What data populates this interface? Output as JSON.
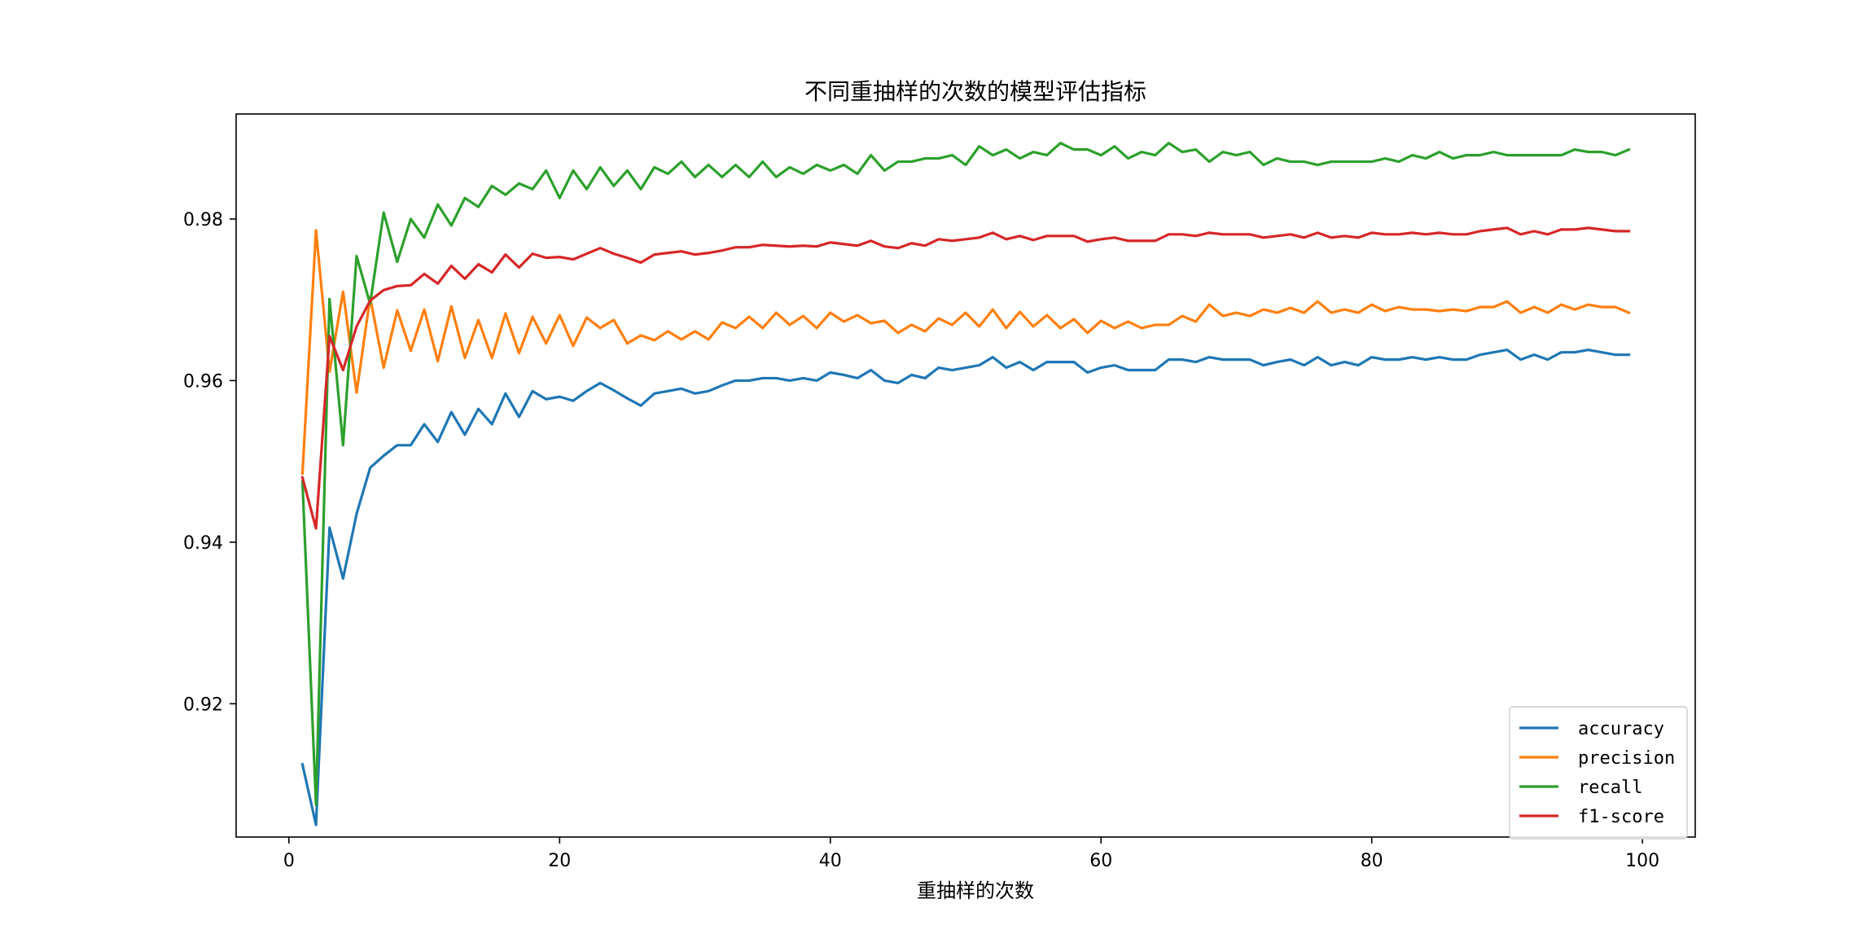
{
  "chart_data": {
    "type": "line",
    "title": "不同重抽样的次数的模型评估指标",
    "xlabel": "重抽样的次数",
    "ylabel": "",
    "xlim": [
      -3.9,
      103.9
    ],
    "ylim": [
      0.9035,
      0.993
    ],
    "xticks": [
      0,
      20,
      40,
      60,
      80,
      100
    ],
    "yticks": [
      0.92,
      0.94,
      0.96,
      0.98
    ],
    "grid": false,
    "legend_position": "bottom-right",
    "x_start": 1,
    "series": [
      {
        "name": "accuracy",
        "color": "#1f77b4",
        "values": [
          0.9125,
          0.905,
          0.9418,
          0.9355,
          0.9435,
          0.9492,
          0.9507,
          0.952,
          0.952,
          0.9546,
          0.9524,
          0.9561,
          0.9533,
          0.9565,
          0.9546,
          0.9584,
          0.9555,
          0.9587,
          0.9577,
          0.958,
          0.9575,
          0.9587,
          0.9597,
          0.9588,
          0.9578,
          0.9569,
          0.9584,
          0.9587,
          0.959,
          0.9584,
          0.9587,
          0.9594,
          0.96,
          0.96,
          0.9603,
          0.9603,
          0.96,
          0.9603,
          0.96,
          0.961,
          0.9607,
          0.9603,
          0.9613,
          0.96,
          0.9597,
          0.9607,
          0.9603,
          0.9616,
          0.9613,
          0.9616,
          0.9619,
          0.9629,
          0.9616,
          0.9623,
          0.9613,
          0.9623,
          0.9623,
          0.9623,
          0.961,
          0.9616,
          0.9619,
          0.9613,
          0.9613,
          0.9613,
          0.9626,
          0.9626,
          0.9623,
          0.9629,
          0.9626,
          0.9626,
          0.9626,
          0.9619,
          0.9623,
          0.9626,
          0.9619,
          0.9629,
          0.9619,
          0.9623,
          0.9619,
          0.9629,
          0.9626,
          0.9626,
          0.9629,
          0.9626,
          0.9629,
          0.9626,
          0.9626,
          0.9632,
          0.9635,
          0.9638,
          0.9626,
          0.9632,
          0.9626,
          0.9635,
          0.9635,
          0.9638,
          0.9635,
          0.9632,
          0.9632
        ]
      },
      {
        "name": "precision",
        "color": "#ff7f0e",
        "values": [
          0.9485,
          0.9786,
          0.9611,
          0.971,
          0.9585,
          0.9703,
          0.9616,
          0.9687,
          0.9637,
          0.9688,
          0.9624,
          0.9692,
          0.9628,
          0.9675,
          0.9628,
          0.9683,
          0.9634,
          0.9679,
          0.9646,
          0.9681,
          0.9643,
          0.9678,
          0.9665,
          0.9675,
          0.9646,
          0.9656,
          0.965,
          0.9661,
          0.9651,
          0.9661,
          0.9651,
          0.9672,
          0.9665,
          0.9679,
          0.9665,
          0.9684,
          0.9669,
          0.968,
          0.9665,
          0.9684,
          0.9673,
          0.9681,
          0.9671,
          0.9674,
          0.9659,
          0.9669,
          0.9661,
          0.9677,
          0.9669,
          0.9684,
          0.9667,
          0.9688,
          0.9665,
          0.9685,
          0.9667,
          0.9681,
          0.9665,
          0.9676,
          0.9659,
          0.9674,
          0.9665,
          0.9673,
          0.9665,
          0.9669,
          0.9669,
          0.968,
          0.9673,
          0.9694,
          0.968,
          0.9684,
          0.968,
          0.9688,
          0.9684,
          0.969,
          0.9684,
          0.9698,
          0.9684,
          0.9688,
          0.9684,
          0.9694,
          0.9686,
          0.9691,
          0.9688,
          0.9688,
          0.9686,
          0.9688,
          0.9686,
          0.9691,
          0.9691,
          0.9698,
          0.9684,
          0.9691,
          0.9684,
          0.9694,
          0.9688,
          0.9694,
          0.9691,
          0.9691,
          0.9684
        ]
      },
      {
        "name": "recall",
        "color": "#2ca02c",
        "values": [
          0.9475,
          0.9075,
          0.9701,
          0.952,
          0.9754,
          0.9695,
          0.9808,
          0.9747,
          0.98,
          0.9777,
          0.9818,
          0.9792,
          0.9826,
          0.9815,
          0.9841,
          0.983,
          0.9844,
          0.9837,
          0.986,
          0.9826,
          0.986,
          0.9837,
          0.9864,
          0.9841,
          0.986,
          0.9837,
          0.9864,
          0.9856,
          0.9871,
          0.9852,
          0.9867,
          0.9852,
          0.9867,
          0.9852,
          0.9871,
          0.9852,
          0.9864,
          0.9856,
          0.9867,
          0.986,
          0.9867,
          0.9856,
          0.9879,
          0.986,
          0.9871,
          0.9871,
          0.9875,
          0.9875,
          0.9879,
          0.9867,
          0.989,
          0.9879,
          0.9886,
          0.9875,
          0.9883,
          0.9879,
          0.9894,
          0.9886,
          0.9886,
          0.9879,
          0.989,
          0.9875,
          0.9883,
          0.9879,
          0.9894,
          0.9883,
          0.9886,
          0.9871,
          0.9883,
          0.9879,
          0.9883,
          0.9867,
          0.9875,
          0.9871,
          0.9871,
          0.9867,
          0.9871,
          0.9871,
          0.9871,
          0.9871,
          0.9875,
          0.9871,
          0.9879,
          0.9875,
          0.9883,
          0.9875,
          0.9879,
          0.9879,
          0.9883,
          0.9879,
          0.9879,
          0.9879,
          0.9879,
          0.9879,
          0.9886,
          0.9883,
          0.9883,
          0.9879,
          0.9886
        ]
      },
      {
        "name": "f1-score",
        "color": "#d62728",
        "values": [
          0.948,
          0.9417,
          0.9655,
          0.9613,
          0.9667,
          0.9699,
          0.9712,
          0.9717,
          0.9718,
          0.9732,
          0.972,
          0.9742,
          0.9726,
          0.9744,
          0.9734,
          0.9756,
          0.974,
          0.9757,
          0.9752,
          0.9753,
          0.975,
          0.9757,
          0.9764,
          0.9757,
          0.9752,
          0.9746,
          0.9756,
          0.9758,
          0.976,
          0.9756,
          0.9758,
          0.9761,
          0.9765,
          0.9765,
          0.9768,
          0.9767,
          0.9766,
          0.9767,
          0.9766,
          0.9771,
          0.9769,
          0.9767,
          0.9773,
          0.9766,
          0.9764,
          0.977,
          0.9767,
          0.9775,
          0.9773,
          0.9775,
          0.9777,
          0.9783,
          0.9775,
          0.9779,
          0.9774,
          0.9779,
          0.9779,
          0.9779,
          0.9772,
          0.9775,
          0.9777,
          0.9773,
          0.9773,
          0.9773,
          0.9781,
          0.9781,
          0.9779,
          0.9783,
          0.9781,
          0.9781,
          0.9781,
          0.9777,
          0.9779,
          0.9781,
          0.9777,
          0.9783,
          0.9777,
          0.9779,
          0.9777,
          0.9783,
          0.9781,
          0.9781,
          0.9783,
          0.9781,
          0.9783,
          0.9781,
          0.9781,
          0.9785,
          0.9787,
          0.9789,
          0.9781,
          0.9785,
          0.9781,
          0.9787,
          0.9787,
          0.9789,
          0.9787,
          0.9785,
          0.9785
        ]
      }
    ]
  }
}
